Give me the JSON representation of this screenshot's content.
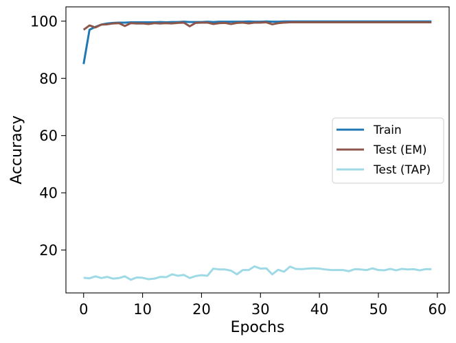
{
  "chart_data": {
    "type": "line",
    "xlabel": "Epochs",
    "ylabel": "Accuracy",
    "xlim": [
      -3,
      62
    ],
    "ylim": [
      5,
      105
    ],
    "xticks": [
      0,
      10,
      20,
      30,
      40,
      50,
      60
    ],
    "yticks": [
      20,
      40,
      60,
      80,
      100
    ],
    "grid": false,
    "legend_position": "center-right",
    "x": [
      0,
      1,
      2,
      3,
      4,
      5,
      6,
      7,
      8,
      9,
      10,
      11,
      12,
      13,
      14,
      15,
      16,
      17,
      18,
      19,
      20,
      21,
      22,
      23,
      24,
      25,
      26,
      27,
      28,
      29,
      30,
      31,
      32,
      33,
      34,
      35,
      36,
      37,
      38,
      39,
      40,
      41,
      42,
      43,
      44,
      45,
      46,
      47,
      48,
      49,
      50,
      51,
      52,
      53,
      54,
      55,
      56,
      57,
      58,
      59
    ],
    "series": [
      {
        "name": "Train",
        "color": "#1f77b4",
        "values": [
          85.0,
          97.0,
          98.0,
          98.8,
          99.2,
          99.4,
          99.5,
          99.5,
          99.6,
          99.6,
          99.6,
          99.6,
          99.6,
          99.7,
          99.6,
          99.7,
          99.7,
          99.8,
          99.7,
          99.7,
          99.7,
          99.8,
          99.7,
          99.8,
          99.8,
          99.8,
          99.8,
          99.8,
          99.9,
          99.8,
          99.8,
          99.9,
          99.8,
          99.8,
          99.9,
          99.9,
          99.9,
          99.9,
          99.9,
          99.9,
          99.9,
          99.9,
          99.9,
          99.9,
          99.9,
          99.9,
          99.9,
          99.9,
          99.9,
          99.9,
          99.9,
          99.9,
          99.9,
          99.9,
          99.9,
          99.9,
          99.9,
          99.9,
          99.9,
          99.9
        ]
      },
      {
        "name": "Test (EM)",
        "color": "#8c564b",
        "values": [
          97.0,
          98.5,
          97.8,
          98.8,
          98.9,
          99.2,
          99.3,
          98.3,
          99.3,
          99.2,
          99.2,
          99.0,
          99.3,
          99.2,
          99.3,
          99.2,
          99.4,
          99.5,
          98.2,
          99.4,
          99.5,
          99.5,
          99.0,
          99.3,
          99.4,
          99.0,
          99.4,
          99.5,
          99.2,
          99.5,
          99.5,
          99.6,
          98.9,
          99.3,
          99.5,
          99.6,
          99.6,
          99.6,
          99.6,
          99.6,
          99.6,
          99.6,
          99.6,
          99.6,
          99.6,
          99.6,
          99.6,
          99.6,
          99.6,
          99.6,
          99.6,
          99.6,
          99.6,
          99.6,
          99.6,
          99.6,
          99.6,
          99.6,
          99.6,
          99.6
        ]
      },
      {
        "name": "Test (TAP)",
        "color": "#9edae5",
        "values": [
          10.3,
          10.1,
          10.8,
          10.2,
          10.6,
          10.0,
          10.2,
          10.8,
          9.6,
          10.4,
          10.3,
          9.8,
          10.0,
          10.6,
          10.5,
          11.5,
          11.0,
          11.3,
          10.2,
          10.9,
          11.2,
          11.0,
          13.5,
          13.2,
          13.2,
          12.8,
          11.5,
          13.0,
          13.0,
          14.3,
          13.5,
          13.6,
          11.5,
          13.1,
          12.4,
          14.2,
          13.4,
          13.3,
          13.5,
          13.6,
          13.5,
          13.2,
          13.0,
          13.0,
          13.0,
          12.6,
          13.3,
          13.2,
          13.0,
          13.6,
          13.0,
          12.9,
          13.4,
          12.9,
          13.4,
          13.2,
          13.3,
          12.9,
          13.3,
          13.3
        ]
      }
    ]
  }
}
